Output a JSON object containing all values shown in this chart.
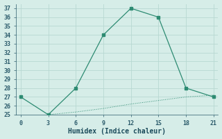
{
  "line1_x": [
    0,
    3,
    6,
    9,
    12,
    15,
    18,
    21
  ],
  "line1_y": [
    27,
    25,
    28,
    34,
    37,
    36,
    28,
    27
  ],
  "line2_x": [
    3,
    6,
    9,
    12,
    15,
    18,
    21
  ],
  "line2_y": [
    25,
    25.3,
    25.7,
    26.2,
    26.6,
    27.0,
    27.2
  ],
  "line_color": "#2d8b72",
  "bg_color": "#d6ede8",
  "grid_color": "#b8d8d2",
  "xlabel": "Humidex (Indice chaleur)",
  "xlim": [
    -0.5,
    21.5
  ],
  "ylim": [
    25,
    37.5
  ],
  "xticks": [
    0,
    3,
    6,
    9,
    12,
    15,
    18,
    21
  ],
  "yticks": [
    25,
    26,
    27,
    28,
    29,
    30,
    31,
    32,
    33,
    34,
    35,
    36,
    37
  ],
  "tick_color": "#2a5a6a",
  "xlabel_color": "#1a4a5a",
  "font_size_tick": 6,
  "font_size_xlabel": 7
}
